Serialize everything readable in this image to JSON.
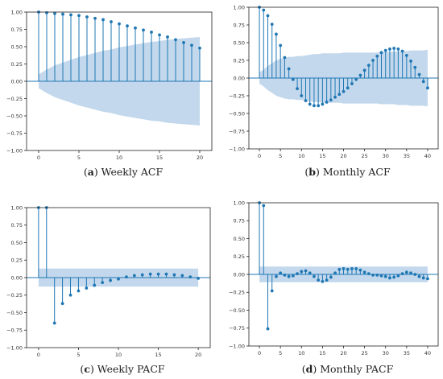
{
  "chart_data": [
    {
      "type": "stem",
      "caption_letter": "a",
      "caption_text": "Weekly ACF",
      "x": [
        0,
        1,
        2,
        3,
        4,
        5,
        6,
        7,
        8,
        9,
        10,
        11,
        12,
        13,
        14,
        15,
        16,
        17,
        18,
        19,
        20
      ],
      "values": [
        1.0,
        0.99,
        0.98,
        0.97,
        0.96,
        0.95,
        0.93,
        0.91,
        0.89,
        0.86,
        0.83,
        0.8,
        0.77,
        0.74,
        0.71,
        0.67,
        0.64,
        0.6,
        0.56,
        0.52,
        0.48
      ],
      "confidence_band": {
        "x": [
          0,
          1,
          2,
          3,
          4,
          5,
          6,
          7,
          8,
          9,
          10,
          11,
          12,
          13,
          14,
          15,
          16,
          17,
          18,
          19,
          20
        ],
        "upper": [
          0.1,
          0.17,
          0.23,
          0.27,
          0.31,
          0.35,
          0.38,
          0.41,
          0.44,
          0.46,
          0.49,
          0.51,
          0.53,
          0.55,
          0.57,
          0.58,
          0.6,
          0.61,
          0.62,
          0.63,
          0.64
        ]
      },
      "xlim": [
        -1.5,
        21.5
      ],
      "ylim": [
        -1.0,
        1.0
      ],
      "xticks": [
        0,
        5,
        10,
        15,
        20
      ],
      "yticks": [
        -1.0,
        -0.75,
        -0.5,
        -0.25,
        0.0,
        0.25,
        0.5,
        0.75,
        1.0
      ],
      "ytick_labels": [
        "−1.00",
        "−0.75",
        "−0.50",
        "−0.25",
        "0.00",
        "0.25",
        "0.50",
        "0.75",
        "1.00"
      ]
    },
    {
      "type": "stem",
      "caption_letter": "b",
      "caption_text": "Monthly ACF",
      "x": [
        0,
        1,
        2,
        3,
        4,
        5,
        6,
        7,
        8,
        9,
        10,
        11,
        12,
        13,
        14,
        15,
        16,
        17,
        18,
        19,
        20,
        21,
        22,
        23,
        24,
        25,
        26,
        27,
        28,
        29,
        30,
        31,
        32,
        33,
        34,
        35,
        36,
        37,
        38,
        39,
        40
      ],
      "values": [
        1.0,
        0.96,
        0.88,
        0.76,
        0.62,
        0.46,
        0.29,
        0.13,
        -0.02,
        -0.15,
        -0.25,
        -0.32,
        -0.37,
        -0.39,
        -0.39,
        -0.37,
        -0.34,
        -0.31,
        -0.27,
        -0.23,
        -0.19,
        -0.14,
        -0.08,
        -0.02,
        0.04,
        0.11,
        0.18,
        0.25,
        0.31,
        0.36,
        0.39,
        0.41,
        0.42,
        0.41,
        0.38,
        0.32,
        0.24,
        0.15,
        0.05,
        -0.05,
        -0.14
      ],
      "confidence_band": {
        "x": [
          0,
          1,
          2,
          3,
          4,
          5,
          6,
          7,
          8,
          9,
          10,
          11,
          12,
          13,
          14,
          15,
          16,
          17,
          18,
          19,
          20,
          21,
          22,
          23,
          24,
          25,
          26,
          27,
          28,
          29,
          30,
          31,
          32,
          33,
          34,
          35,
          36,
          37,
          38,
          39,
          40
        ],
        "upper": [
          0.08,
          0.12,
          0.17,
          0.21,
          0.25,
          0.27,
          0.29,
          0.3,
          0.3,
          0.31,
          0.31,
          0.32,
          0.33,
          0.34,
          0.34,
          0.35,
          0.35,
          0.35,
          0.35,
          0.35,
          0.36,
          0.36,
          0.36,
          0.36,
          0.36,
          0.36,
          0.36,
          0.36,
          0.36,
          0.37,
          0.37,
          0.37,
          0.37,
          0.38,
          0.38,
          0.38,
          0.39,
          0.39,
          0.39,
          0.39,
          0.4
        ]
      },
      "xlim": [
        -2.5,
        42.5
      ],
      "ylim": [
        -1.0,
        1.0
      ],
      "xticks": [
        0,
        5,
        10,
        15,
        20,
        25,
        30,
        35,
        40
      ],
      "yticks": [
        -1.0,
        -0.75,
        -0.5,
        -0.25,
        0.0,
        0.25,
        0.5,
        0.75,
        1.0
      ],
      "ytick_labels": [
        "−1.00",
        "−0.75",
        "−0.50",
        "−0.25",
        "0.00",
        "0.25",
        "0.50",
        "0.75",
        "1.00"
      ]
    },
    {
      "type": "stem",
      "caption_letter": "c",
      "caption_text": "Weekly PACF",
      "x": [
        0,
        1,
        2,
        3,
        4,
        5,
        6,
        7,
        8,
        9,
        10,
        11,
        12,
        13,
        14,
        15,
        16,
        17,
        18,
        19,
        20
      ],
      "values": [
        1.0,
        1.0,
        -0.65,
        -0.37,
        -0.25,
        -0.19,
        -0.15,
        -0.11,
        -0.07,
        -0.04,
        -0.02,
        0.01,
        0.03,
        0.04,
        0.05,
        0.05,
        0.05,
        0.04,
        0.03,
        0.01,
        -0.01
      ],
      "confidence_band": {
        "x": [
          0,
          20
        ],
        "upper": [
          0.13,
          0.13
        ]
      },
      "xlim": [
        -1.5,
        21.5
      ],
      "ylim": [
        -1.0,
        1.0
      ],
      "xticks": [
        0,
        5,
        10,
        15,
        20
      ],
      "yticks": [
        -1.0,
        -0.75,
        -0.5,
        -0.25,
        0.0,
        0.25,
        0.5,
        0.75,
        1.0
      ],
      "ytick_labels": [
        "−1.00",
        "−0.75",
        "−0.50",
        "−0.25",
        "0.00",
        "0.25",
        "0.50",
        "0.75",
        "1.00"
      ]
    },
    {
      "type": "stem",
      "caption_letter": "d",
      "caption_text": "Monthly PACF",
      "x": [
        0,
        1,
        2,
        3,
        4,
        5,
        6,
        7,
        8,
        9,
        10,
        11,
        12,
        13,
        14,
        15,
        16,
        17,
        18,
        19,
        20,
        21,
        22,
        23,
        24,
        25,
        26,
        27,
        28,
        29,
        30,
        31,
        32,
        33,
        34,
        35,
        36,
        37,
        38,
        39,
        40
      ],
      "values": [
        1.0,
        0.96,
        -0.76,
        -0.23,
        -0.03,
        0.02,
        -0.01,
        -0.03,
        -0.02,
        0.01,
        0.04,
        0.05,
        0.02,
        -0.03,
        -0.08,
        -0.1,
        -0.08,
        -0.04,
        0.02,
        0.07,
        0.08,
        0.07,
        0.08,
        0.08,
        0.06,
        0.03,
        0.01,
        -0.01,
        -0.01,
        -0.02,
        -0.03,
        -0.05,
        -0.04,
        -0.02,
        0.01,
        0.03,
        0.02,
        0.0,
        -0.03,
        -0.05,
        -0.06
      ],
      "confidence_band": {
        "x": [
          0,
          40
        ],
        "upper": [
          0.11,
          0.11
        ]
      },
      "xlim": [
        -2.5,
        42.5
      ],
      "ylim": [
        -1.0,
        1.0
      ],
      "xticks": [
        0,
        5,
        10,
        15,
        20,
        25,
        30,
        35,
        40
      ],
      "yticks": [
        -1.0,
        -0.75,
        -0.5,
        -0.25,
        0.0,
        0.25,
        0.5,
        0.75,
        1.0
      ],
      "ytick_labels": [
        "−1.00",
        "−0.75",
        "−0.50",
        "−0.25",
        "0.00",
        "0.25",
        "0.50",
        "0.75",
        "1.00"
      ]
    }
  ],
  "colors": {
    "stem": "#1f77b4",
    "band": "#bcd4ea",
    "axis": "#222222",
    "caption": "#222222"
  }
}
